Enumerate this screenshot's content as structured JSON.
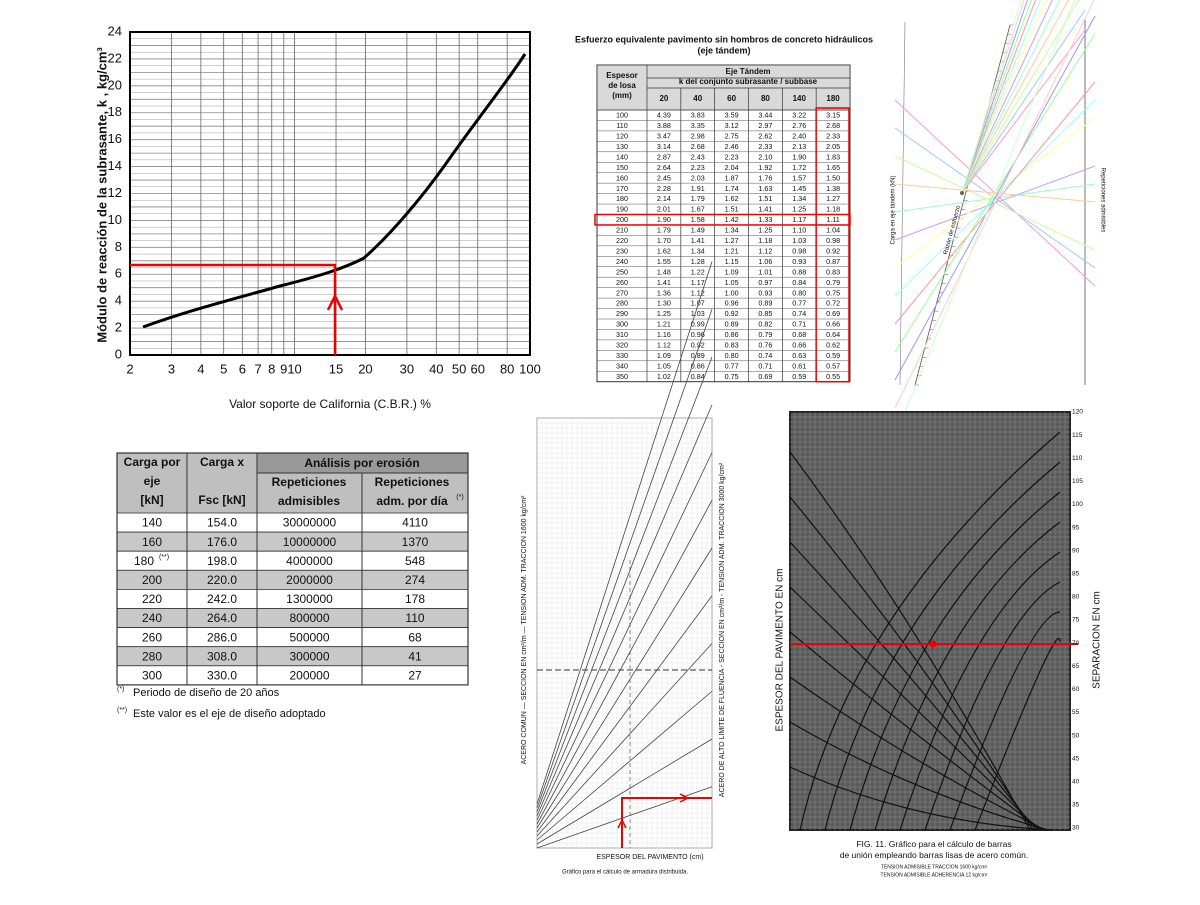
{
  "cbr_chart": {
    "y_label": "Módulo de reacción de la subrasante, k , kg/cm³",
    "x_label": "Valor soporte de California (C.B.R.) %",
    "yticks": [
      0,
      2,
      4,
      6,
      8,
      10,
      12,
      14,
      16,
      18,
      20,
      22,
      24
    ],
    "xticks": [
      2,
      3,
      4,
      5,
      6,
      7,
      8,
      9,
      10,
      15,
      20,
      30,
      40,
      50,
      60,
      80,
      100
    ]
  },
  "stress_table": {
    "title": "Esfuerzo equivalente pavimento sin hombros de concreto hidráulicos",
    "subtitle": "(eje tándem)",
    "group_header": "Eje Tándem",
    "k_header": "k del conjunto subrasante / subbase",
    "row_header": "Espesor de losa (mm)",
    "columns": [
      "20",
      "40",
      "60",
      "80",
      "140",
      "180"
    ],
    "rows": [
      [
        "100",
        "4.39",
        "3.83",
        "3.59",
        "3.44",
        "3.22",
        "3.15"
      ],
      [
        "110",
        "3.88",
        "3.35",
        "3.12",
        "2.97",
        "2.76",
        "2.68"
      ],
      [
        "120",
        "3.47",
        "2.98",
        "2.75",
        "2.62",
        "2.40",
        "2.33"
      ],
      [
        "130",
        "3.14",
        "2.68",
        "2.46",
        "2.33",
        "2.13",
        "2.05"
      ],
      [
        "140",
        "2.87",
        "2.43",
        "2.23",
        "2.10",
        "1.90",
        "1.83"
      ],
      [
        "150",
        "2.64",
        "2.23",
        "2.04",
        "1.92",
        "1.72",
        "1.65"
      ],
      [
        "160",
        "2.45",
        "2.03",
        "1.87",
        "1.76",
        "1.57",
        "1.50"
      ],
      [
        "170",
        "2.28",
        "1.91",
        "1.74",
        "1.63",
        "1.45",
        "1.38"
      ],
      [
        "180",
        "2.14",
        "1.79",
        "1.62",
        "1.51",
        "1.34",
        "1.27"
      ],
      [
        "190",
        "2.01",
        "1.67",
        "1.51",
        "1.41",
        "1.25",
        "1.18"
      ],
      [
        "200",
        "1.90",
        "1.58",
        "1.42",
        "1.33",
        "1.17",
        "1.11"
      ],
      [
        "210",
        "1.79",
        "1.49",
        "1.34",
        "1.25",
        "1.10",
        "1.04"
      ],
      [
        "220",
        "1.70",
        "1.41",
        "1.27",
        "1.18",
        "1.03",
        "0.98"
      ],
      [
        "230",
        "1.62",
        "1.34",
        "1.21",
        "1.12",
        "0.98",
        "0.92"
      ],
      [
        "240",
        "1.55",
        "1.28",
        "1.15",
        "1.06",
        "0.93",
        "0.87"
      ],
      [
        "250",
        "1.48",
        "1.22",
        "1.09",
        "1.01",
        "0.88",
        "0.83"
      ],
      [
        "260",
        "1.41",
        "1.17",
        "1.05",
        "0.97",
        "0.84",
        "0.79"
      ],
      [
        "270",
        "1.36",
        "1.12",
        "1.00",
        "0.93",
        "0.80",
        "0.75"
      ],
      [
        "280",
        "1.30",
        "1.07",
        "0.96",
        "0.89",
        "0.77",
        "0.72"
      ],
      [
        "290",
        "1.25",
        "1.03",
        "0.92",
        "0.85",
        "0.74",
        "0.69"
      ],
      [
        "300",
        "1.21",
        "0.99",
        "0.89",
        "0.82",
        "0.71",
        "0.66"
      ],
      [
        "310",
        "1.16",
        "0.96",
        "0.86",
        "0.79",
        "0.68",
        "0.64"
      ],
      [
        "320",
        "1.12",
        "0.92",
        "0.83",
        "0.76",
        "0.66",
        "0.62"
      ],
      [
        "330",
        "1.09",
        "0.89",
        "0.80",
        "0.74",
        "0.63",
        "0.59"
      ],
      [
        "340",
        "1.05",
        "0.86",
        "0.77",
        "0.71",
        "0.61",
        "0.57"
      ],
      [
        "350",
        "1.02",
        "0.84",
        "0.75",
        "0.69",
        "0.59",
        "0.55"
      ]
    ]
  },
  "nomograph": {
    "left_label": "Carga en eje tándem (kN)",
    "middle_label": "Razón de esfuerzo",
    "right_label": "Repeticiones admisibles"
  },
  "erosion_table": {
    "headers": [
      "Carga por eje [kN]",
      "Carga x Fsc [kN]",
      "Análisis por erosión",
      "Repeticiones admisibles",
      "Repeticiones adm. por día"
    ],
    "header_mark": "(*)",
    "rows": [
      [
        "140",
        "154.0",
        "30000000",
        "4110"
      ],
      [
        "160",
        "176.0",
        "10000000",
        "1370"
      ],
      [
        "180",
        "198.0",
        "4000000",
        "548"
      ],
      [
        "200",
        "220.0",
        "2000000",
        "274"
      ],
      [
        "220",
        "242.0",
        "1300000",
        "178"
      ],
      [
        "240",
        "264.0",
        "800000",
        "110"
      ],
      [
        "260",
        "286.0",
        "500000",
        "68"
      ],
      [
        "280",
        "308.0",
        "300000",
        "41"
      ],
      [
        "300",
        "330.0",
        "200000",
        "27"
      ]
    ],
    "design_mark": "(**)",
    "notes": [
      {
        "mark": "(*)",
        "text": "Periodo de diseño de 20 años"
      },
      {
        "mark": "(**)",
        "text": "Este valor es el eje de diseño adoptado"
      }
    ]
  },
  "steel_chart": {
    "left_label": "ACERO COMUN  —  SECCION EN cm²/m  —  TENSION ADM. TRACCION 1600 kg/cm²",
    "right_label": "ACERO DE ALTO LIMITE DE FLUENCIA - SECCION EN cm²/m - TENSION ADM. TRACCION 3000 kg/cm²",
    "x_label": "ESPESOR DEL PAVIMENTO (cm)",
    "caption": "Gráfico para el cálculo de armadura distribuida."
  },
  "tie_bar_chart": {
    "left_label": "ESPESOR DEL PAVIMENTO EN cm",
    "right_label": "SEPARACION EN cm",
    "right_ticks": [
      "120",
      "115",
      "110",
      "105",
      "100",
      "95",
      "90",
      "85",
      "80",
      "75",
      "70",
      "65",
      "60",
      "55",
      "50",
      "45",
      "40",
      "35",
      "30"
    ],
    "caption": "FIG. 11. Gráfico para el cálculo de barras de unión empleando barras lisas de acero común.",
    "note1": "TENSION ADMISIBLE TRACCION 1600 kg/cm²",
    "note2": "TENSION ADMISIBLE ADHERENCIA 12 kg/cm²"
  }
}
